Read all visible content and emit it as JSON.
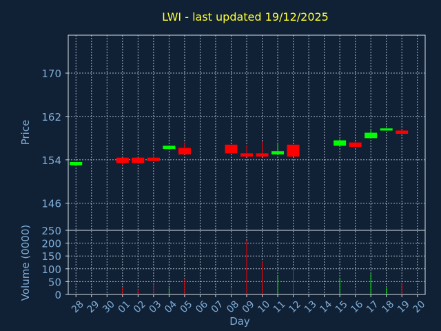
{
  "chart_data": {
    "type": "candlestick",
    "title": "LWI - last updated 19/12/2025",
    "xlabel": "Day",
    "price_panel": {
      "ylabel": "Price",
      "ylim": [
        141,
        177
      ],
      "yticks": [
        146,
        154,
        162,
        170
      ],
      "grid": true
    },
    "volume_panel": {
      "ylabel": "Volume (0000)",
      "ylim": [
        0,
        250
      ],
      "yticks": [
        0,
        50,
        100,
        150,
        200,
        250
      ],
      "grid": true
    },
    "x_labels": [
      "28",
      "29",
      "30",
      "01",
      "02",
      "03",
      "04",
      "05",
      "06",
      "07",
      "08",
      "09",
      "10",
      "11",
      "12",
      "13",
      "14",
      "15",
      "16",
      "17",
      "18",
      "19",
      "20"
    ],
    "colors": {
      "up": "#00ff00",
      "down": "#ff0000",
      "title": "#ffff33",
      "axis_text": "#7faed8",
      "background": "#102035"
    },
    "candles": [
      {
        "day": "28",
        "open": 153.0,
        "close": 153.6,
        "high": 153.6,
        "low": 153.0,
        "volume": 0
      },
      {
        "day": "01",
        "open": 154.4,
        "close": 153.4,
        "high": 154.4,
        "low": 153.0,
        "volume": 30
      },
      {
        "day": "02",
        "open": 154.4,
        "close": 153.4,
        "high": 154.4,
        "low": 153.4,
        "volume": 20
      },
      {
        "day": "03",
        "open": 154.4,
        "close": 153.8,
        "high": 155.0,
        "low": 153.8,
        "volume": 40
      },
      {
        "day": "04",
        "open": 156.0,
        "close": 156.6,
        "high": 156.6,
        "low": 156.0,
        "volume": 25
      },
      {
        "day": "05",
        "open": 156.2,
        "close": 155.0,
        "high": 157.2,
        "low": 155.0,
        "volume": 62
      },
      {
        "day": "08",
        "open": 156.8,
        "close": 155.2,
        "high": 156.8,
        "low": 155.2,
        "volume": 25
      },
      {
        "day": "09",
        "open": 155.2,
        "close": 154.6,
        "high": 156.6,
        "low": 154.6,
        "volume": 210
      },
      {
        "day": "10",
        "open": 155.2,
        "close": 154.6,
        "high": 157.4,
        "low": 154.6,
        "volume": 130
      },
      {
        "day": "11",
        "open": 155.0,
        "close": 155.6,
        "high": 157.2,
        "low": 155.0,
        "volume": 75
      },
      {
        "day": "12",
        "open": 156.8,
        "close": 154.6,
        "high": 156.8,
        "low": 154.6,
        "volume": 100
      },
      {
        "day": "15",
        "open": 156.6,
        "close": 157.6,
        "high": 157.8,
        "low": 156.4,
        "volume": 65
      },
      {
        "day": "16",
        "open": 157.2,
        "close": 156.4,
        "high": 157.4,
        "low": 156.4,
        "volume": 20
      },
      {
        "day": "17",
        "open": 158.0,
        "close": 159.0,
        "high": 159.6,
        "low": 158.0,
        "volume": 80
      },
      {
        "day": "18",
        "open": 159.4,
        "close": 159.8,
        "high": 159.8,
        "low": 159.4,
        "volume": 25
      },
      {
        "day": "19",
        "open": 159.4,
        "close": 158.8,
        "high": 159.6,
        "low": 158.8,
        "volume": 45
      }
    ]
  }
}
